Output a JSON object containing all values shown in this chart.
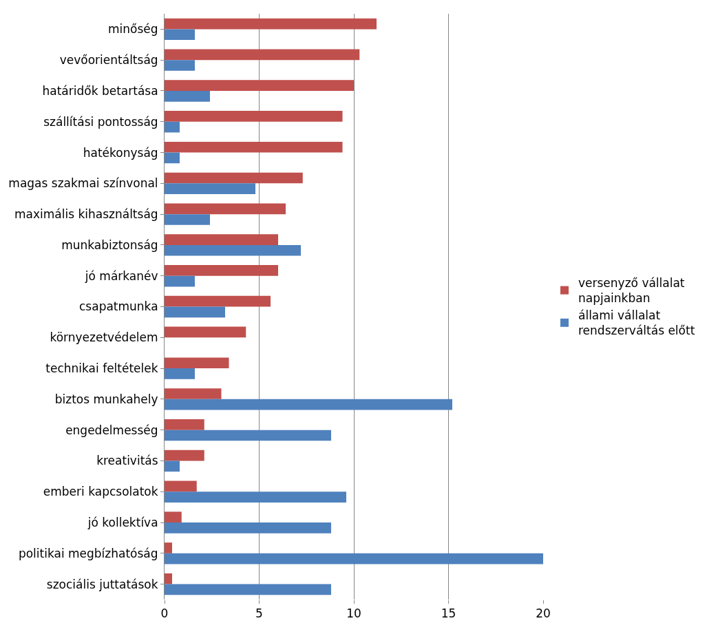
{
  "chart_data": {
    "type": "bar",
    "orientation": "horizontal",
    "categories": [
      "minőség",
      "vevőorientáltság",
      "határidők betartása",
      "szállítási pontosság",
      "hatékonyság",
      "magas szakmai színvonal",
      "maximális kihasználtság",
      "munkabiztonság",
      "jó márkanév",
      "csapatmunka",
      "környezetvédelem",
      "technikai feltételek",
      "biztos munkahely",
      "engedelmesség",
      "kreativitás",
      "emberi kapcsolatok",
      "jó kollektíva",
      "politikai megbízhatóság",
      "szociális juttatások"
    ],
    "series": [
      {
        "name": "versenyző vállalat napjainkban",
        "color": "#c0504d",
        "values": [
          11.2,
          10.3,
          10.0,
          9.4,
          9.4,
          7.3,
          6.4,
          6.0,
          6.0,
          5.6,
          4.3,
          3.4,
          3.0,
          2.1,
          2.1,
          1.7,
          0.9,
          0.4,
          0.4
        ]
      },
      {
        "name": "állami vállalat rendszerváltás előtt",
        "color": "#4f81bd",
        "values": [
          1.6,
          1.6,
          2.4,
          0.8,
          0.8,
          4.8,
          2.4,
          7.2,
          1.6,
          3.2,
          null,
          1.6,
          15.2,
          8.8,
          0.8,
          9.6,
          8.8,
          20,
          8.8
        ]
      }
    ],
    "xlim": [
      0,
      20
    ],
    "xticks": [
      0,
      5,
      10,
      15,
      20
    ],
    "grid": "x",
    "legend": "right"
  }
}
